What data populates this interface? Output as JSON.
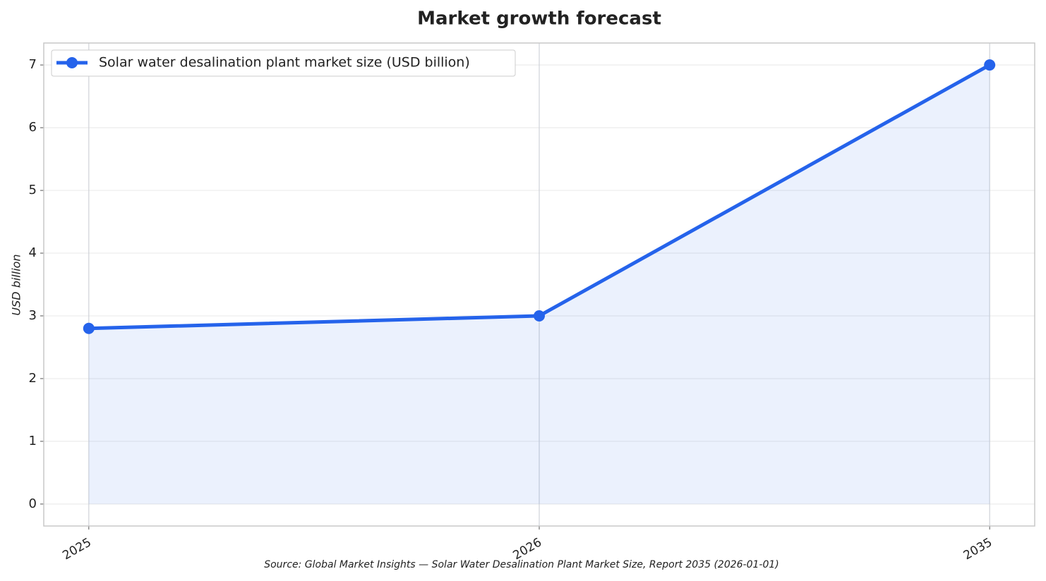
{
  "chart_data": {
    "type": "line",
    "title": "Market growth forecast",
    "y_label": "USD billion",
    "source": "Source: Global Market Insights — Solar Water Desalination Plant Market Size, Report 2035 (2026-01-01)",
    "categories": [
      "2025",
      "2026",
      "2035"
    ],
    "series": [
      {
        "name": "Solar water desalination plant market size (USD billion)",
        "color": "#2563eb",
        "values": [
          2.8,
          3.0,
          7.0
        ]
      }
    ],
    "ylim": [
      -0.35,
      7.35
    ],
    "yticks": [
      0,
      1,
      2,
      3,
      4,
      5,
      6,
      7
    ],
    "grid": true,
    "legend": "upper left",
    "fill_area": true
  }
}
